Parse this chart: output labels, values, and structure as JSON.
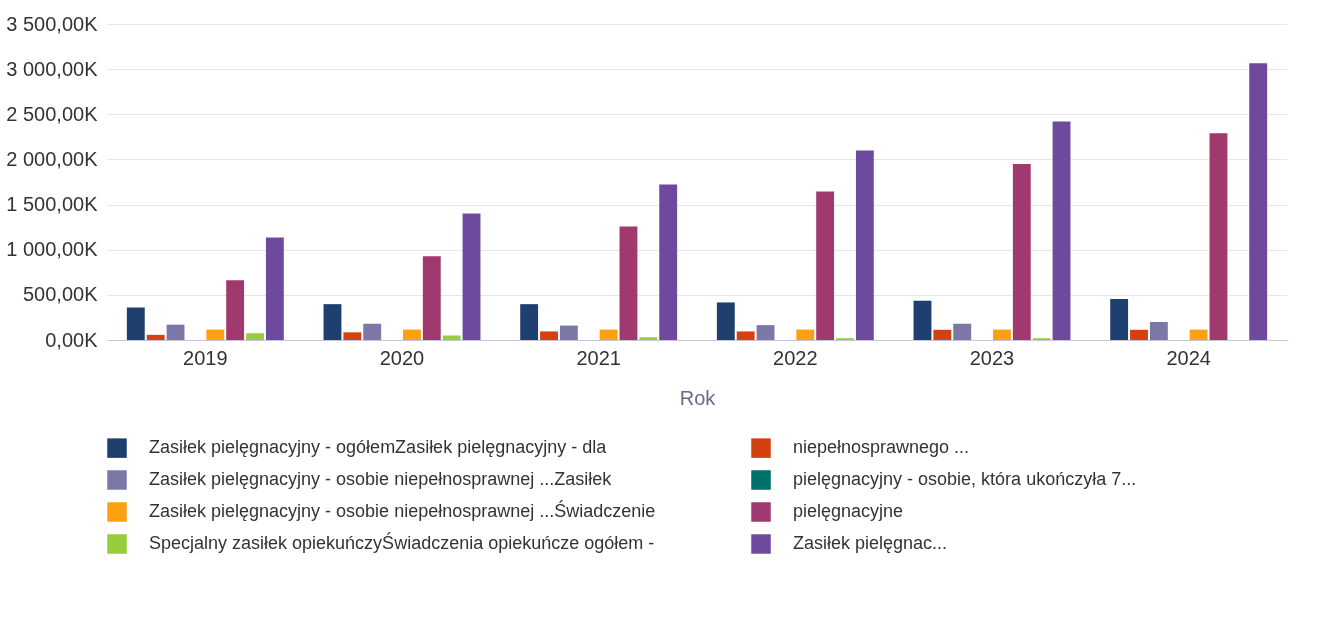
{
  "chart_data": {
    "type": "bar",
    "xlabel": "Rok",
    "categories": [
      "2019",
      "2020",
      "2021",
      "2022",
      "2023",
      "2024"
    ],
    "ylim": [
      0,
      3500
    ],
    "yticks": [
      {
        "value": 0,
        "label": "0,00K"
      },
      {
        "value": 500,
        "label": "500,00K"
      },
      {
        "value": 1000,
        "label": "1 000,00K"
      },
      {
        "value": 1500,
        "label": "1 500,00K"
      },
      {
        "value": 2000,
        "label": "2 000,00K"
      },
      {
        "value": 2500,
        "label": "2 500,00K"
      },
      {
        "value": 3000,
        "label": "3 000,00K"
      },
      {
        "value": 3500,
        "label": "3 500,00K"
      }
    ],
    "grid": "y",
    "legend": "bottom",
    "series": [
      {
        "name": "Zasiłek pielęgnacyjny - ogółemZasiłek pielęgnacyjny - dla",
        "color": "#1f3f6e",
        "values": [
          360,
          397,
          397,
          416,
          435,
          454
        ]
      },
      {
        "name": "niepełnosprawnego ...",
        "color": "#d4400e",
        "values": [
          57,
          85,
          95,
          95,
          113,
          113
        ]
      },
      {
        "name": "Zasiłek pielęgnacyjny - osobie niepełnosprawnej ...Zasiłek",
        "color": "#7b78a8",
        "values": [
          170,
          180,
          160,
          165,
          180,
          200
        ]
      },
      {
        "name": "pielęgnacyjny - osobie, która ukończyła 7...",
        "color": "#00706a",
        "values": [
          0,
          0,
          0,
          0,
          0,
          0
        ]
      },
      {
        "name": "Zasiłek pielęgnacyjny -  osobie niepełnosprawnej ...Świadczenie",
        "color": "#ffa010",
        "values": [
          115,
          115,
          115,
          115,
          115,
          115
        ]
      },
      {
        "name": "pielęgnacyjne",
        "color": "#a03a6e",
        "values": [
          662,
          927,
          1258,
          1646,
          1950,
          2290
        ]
      },
      {
        "name": "Specjalny zasiłek opiekuńczyŚwiadczenia opiekuńcze ogółem -",
        "color": "#98cc3c",
        "values": [
          75,
          50,
          30,
          20,
          20,
          0
        ]
      },
      {
        "name": "Zasiłek pielęgnac...",
        "color": "#6e4a9e",
        "values": [
          1135,
          1400,
          1722,
          2100,
          2420,
          3065
        ]
      }
    ]
  }
}
